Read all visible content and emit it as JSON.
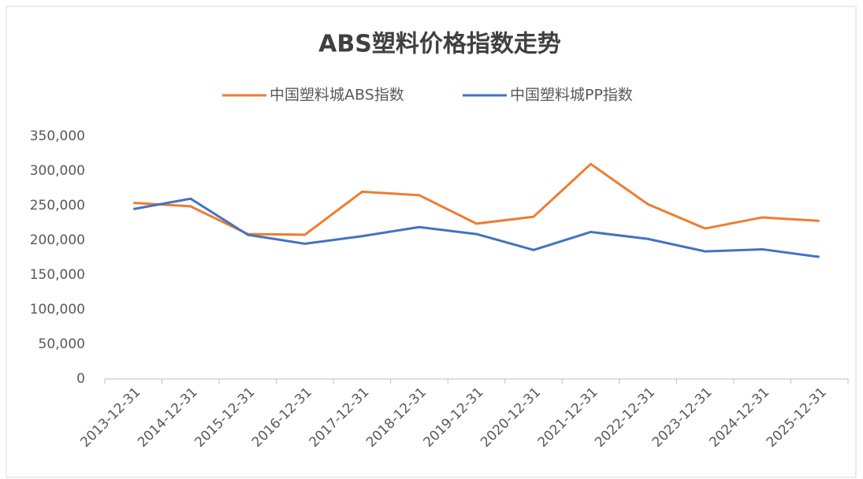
{
  "chart_data": {
    "type": "line",
    "title": "ABS塑料价格指数走势",
    "categories": [
      "2013-12-31",
      "2014-12-31",
      "2015-12-31",
      "2016-12-31",
      "2017-12-31",
      "2018-12-31",
      "2019-12-31",
      "2020-12-31",
      "2021-12-31",
      "2022-12-31",
      "2023-12-31",
      "2024-12-31",
      "2025-12-31"
    ],
    "series": [
      {
        "name": "中国塑料城ABS指数",
        "color": "#ed7d31",
        "values": [
          254000,
          249000,
          209000,
          208000,
          270000,
          265000,
          224000,
          234000,
          310000,
          252000,
          217000,
          233000,
          228000
        ]
      },
      {
        "name": "中国塑料城PP指数",
        "color": "#4472c4",
        "values": [
          245000,
          260000,
          208000,
          195000,
          206000,
          219000,
          209000,
          186000,
          212000,
          202000,
          184000,
          187000,
          176000
        ]
      }
    ],
    "ylim": [
      0,
      350000
    ],
    "yticks": [
      0,
      {
        "value": 50000,
        "label": "50,000"
      },
      {
        "value": 100000,
        "label": "100,000"
      },
      {
        "value": 150000,
        "label": "150,000"
      },
      {
        "value": 200000,
        "label": "200,000"
      },
      {
        "value": 250000,
        "label": "250,000"
      },
      {
        "value": 300000,
        "label": "300,000"
      },
      {
        "value": 350000,
        "label": "350,000"
      }
    ],
    "grid": false,
    "legend": "top"
  }
}
